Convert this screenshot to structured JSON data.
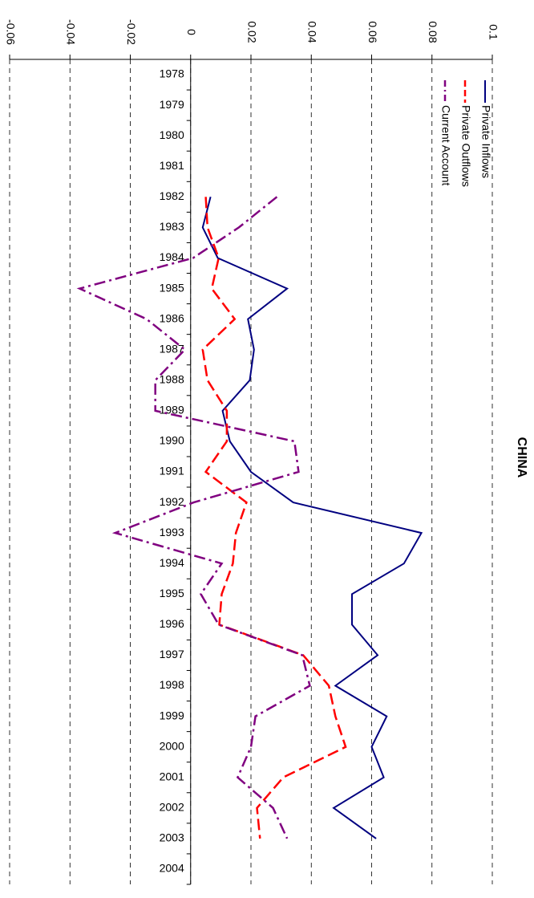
{
  "chart_data": {
    "type": "line",
    "orientation": "rotated",
    "title": "CHINA",
    "categories": [
      "1978",
      "1979",
      "1980",
      "1981",
      "1982",
      "1983",
      "1984",
      "1985",
      "1986",
      "1987",
      "1988",
      "1989",
      "1990",
      "1991",
      "1992",
      "1993",
      "1994",
      "1995",
      "1996",
      "1997",
      "1998",
      "1999",
      "2000",
      "2001",
      "2002",
      "2003",
      "2004"
    ],
    "series": [
      {
        "name": "Private Inflows",
        "color": "#000080",
        "line_style": "solid",
        "values": [
          null,
          null,
          null,
          null,
          0.0066,
          0.004,
          0.009,
          0.032,
          0.019,
          0.021,
          0.0196,
          0.0106,
          0.013,
          0.02,
          0.034,
          0.0765,
          0.0707,
          0.0535,
          0.0535,
          0.062,
          0.048,
          0.065,
          0.06,
          0.064,
          0.0474,
          0.0615,
          null
        ]
      },
      {
        "name": "Private Outflows",
        "color": "#ff0000",
        "line_style": "dashed",
        "values": [
          null,
          null,
          null,
          null,
          0.005,
          0.0056,
          0.0093,
          0.007,
          0.0146,
          0.004,
          0.0056,
          0.012,
          0.012,
          0.005,
          0.0185,
          0.015,
          0.014,
          0.0103,
          0.0095,
          0.0373,
          0.0458,
          0.048,
          0.0514,
          0.0307,
          0.022,
          0.023,
          null
        ]
      },
      {
        "name": "Current Account",
        "color": "#800080",
        "line_style": "dashdot",
        "values": [
          null,
          null,
          null,
          null,
          0.0286,
          0.016,
          0.0008,
          -0.0368,
          -0.0146,
          -0.0019,
          -0.0117,
          -0.0117,
          0.0344,
          0.0358,
          0.001,
          -0.025,
          0.0103,
          0.0034,
          0.0093,
          0.037,
          0.0395,
          0.0215,
          0.02,
          0.0156,
          0.0273,
          0.032,
          null
        ]
      }
    ],
    "ylim": [
      -0.06,
      0.1
    ],
    "yticks": [
      -0.06,
      -0.04,
      -0.02,
      0,
      0.02,
      0.04,
      0.06,
      0.08,
      0.1
    ],
    "grid": true,
    "legend": "top-right"
  }
}
